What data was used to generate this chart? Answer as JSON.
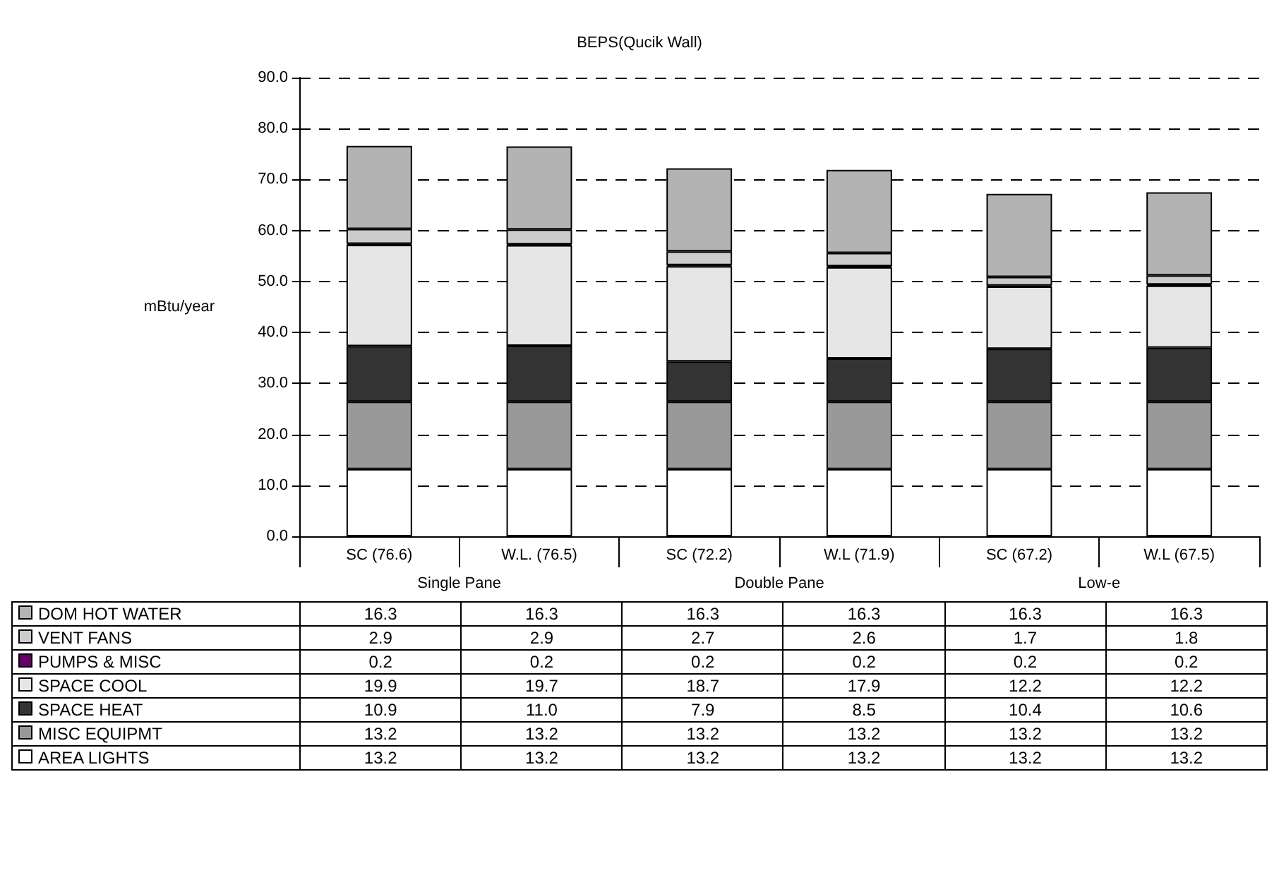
{
  "chart_data": {
    "type": "bar",
    "title": "BEPS(Qucik Wall)",
    "ylabel": "mBtu/year",
    "stacked": true,
    "legend": "bottom",
    "grid": "y",
    "annotations": [
      "Single Pane",
      "Double Pane",
      "Low-e"
    ],
    "categories": [
      "SC (76.6)",
      "W.L. (76.5)",
      "SC (72.2)",
      "W.L (71.9)",
      "SC (67.2)",
      "W.L (67.5)"
    ],
    "ylim": [
      0,
      90
    ],
    "yticks": [
      {
        "value": 0,
        "label": "0.0"
      },
      {
        "value": 10,
        "label": "10.0"
      },
      {
        "value": 20,
        "label": "20.0"
      },
      {
        "value": 30,
        "label": "30.0"
      },
      {
        "value": 40,
        "label": "40.0"
      },
      {
        "value": 50,
        "label": "50.0"
      },
      {
        "value": 60,
        "label": "60.0"
      },
      {
        "value": 70,
        "label": "70.0"
      },
      {
        "value": 80,
        "label": "80.0"
      },
      {
        "value": 90,
        "label": "90.0"
      }
    ],
    "series": [
      {
        "name": "AREA LIGHTS",
        "color": "#ffffff",
        "values": [
          13.2,
          13.2,
          13.2,
          13.2,
          13.2,
          13.2
        ],
        "value_labels": [
          "13.2",
          "13.2",
          "13.2",
          "13.2",
          "13.2",
          "13.2"
        ]
      },
      {
        "name": "MISC EQUIPMT",
        "color": "#999999",
        "values": [
          13.2,
          13.2,
          13.2,
          13.2,
          13.2,
          13.2
        ],
        "value_labels": [
          "13.2",
          "13.2",
          "13.2",
          "13.2",
          "13.2",
          "13.2"
        ]
      },
      {
        "name": "SPACE HEAT",
        "color": "#333333",
        "values": [
          10.9,
          11.0,
          7.9,
          8.5,
          10.4,
          10.6
        ],
        "value_labels": [
          "10.9",
          "11.0",
          "7.9",
          "8.5",
          "10.4",
          "10.6"
        ]
      },
      {
        "name": "SPACE COOL",
        "color": "#e6e6e6",
        "values": [
          19.9,
          19.7,
          18.7,
          17.9,
          12.2,
          12.2
        ],
        "value_labels": [
          "19.9",
          "19.7",
          "18.7",
          "17.9",
          "12.2",
          "12.2"
        ]
      },
      {
        "name": "PUMPS & MISC",
        "color": "#660066",
        "values": [
          0.2,
          0.2,
          0.2,
          0.2,
          0.2,
          0.2
        ],
        "value_labels": [
          "0.2",
          "0.2",
          "0.2",
          "0.2",
          "0.2",
          "0.2"
        ]
      },
      {
        "name": "VENT FANS",
        "color": "#cccccc",
        "values": [
          2.9,
          2.9,
          2.7,
          2.6,
          1.7,
          1.8
        ],
        "value_labels": [
          "2.9",
          "2.9",
          "2.7",
          "2.6",
          "1.7",
          "1.8"
        ]
      },
      {
        "name": "DOM HOT WATER",
        "color": "#b3b3b3",
        "values": [
          16.3,
          16.3,
          16.3,
          16.3,
          16.3,
          16.3
        ],
        "value_labels": [
          "16.3",
          "16.3",
          "16.3",
          "16.3",
          "16.3",
          "16.3"
        ]
      }
    ]
  }
}
